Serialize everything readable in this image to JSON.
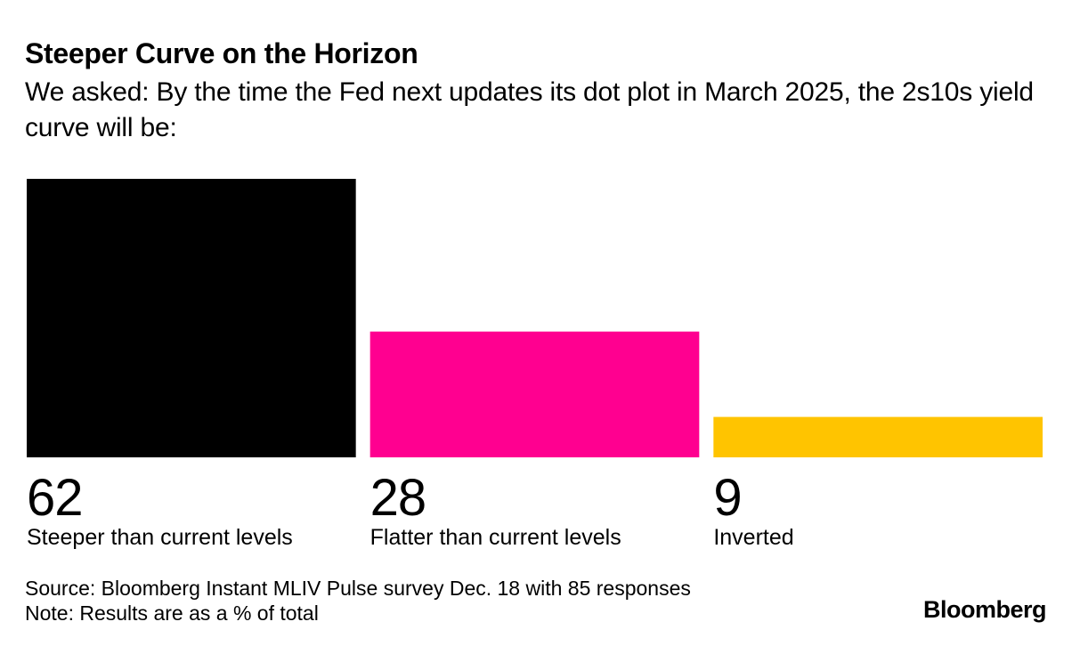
{
  "chart_data": {
    "type": "bar",
    "title": "Steeper Curve on the Horizon",
    "subtitle": "We asked: By the time the Fed next updates its dot plot in March 2025, the 2s10s yield curve will be:",
    "categories": [
      "Steeper than current levels",
      "Flatter than current levels",
      "Inverted"
    ],
    "values": [
      62,
      28,
      9
    ],
    "value_labels": [
      "62",
      "28",
      "9"
    ],
    "colors": [
      "#000000",
      "#ff0090",
      "#ffc400"
    ],
    "ylim": [
      0,
      62
    ],
    "xlabel": "",
    "ylabel": "",
    "grid": false,
    "legend": "none"
  },
  "footer": {
    "source": "Source: Bloomberg Instant MLIV Pulse survey Dec. 18 with 85 responses",
    "note": "Note: Results are as a % of total",
    "brand": "Bloomberg"
  }
}
